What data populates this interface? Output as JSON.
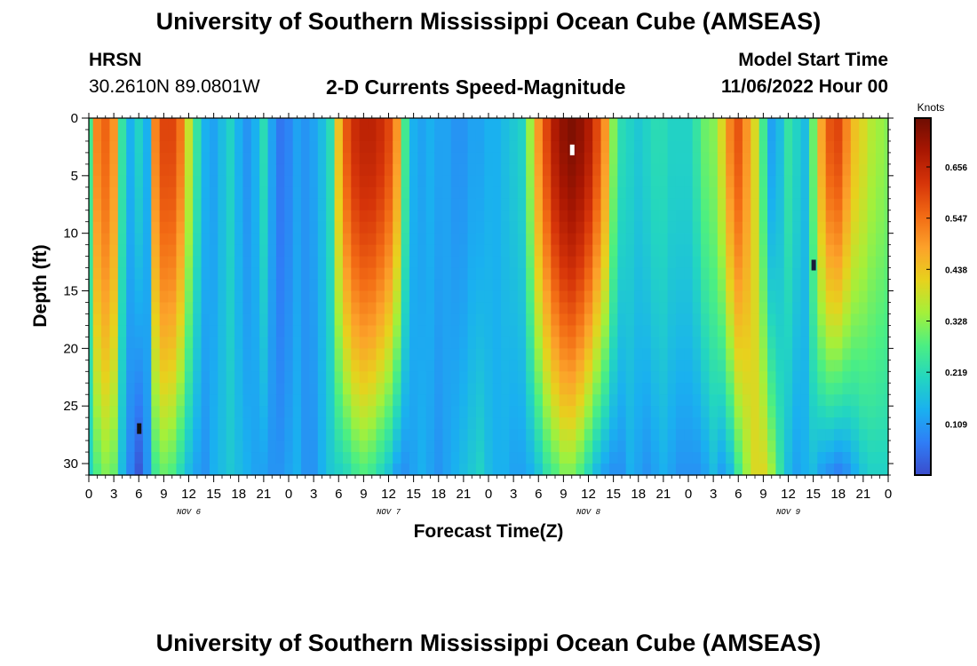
{
  "page": {
    "title": "University of Southern Mississippi Ocean Cube (AMSEAS)",
    "footer_title": "University of Southern Mississippi Ocean Cube (AMSEAS)",
    "station": "HRSN",
    "coords": "30.2610N  89.0801W",
    "subtitle": "2-D Currents Speed-Magnitude",
    "model_start_label": "Model Start Time",
    "model_start_value": "11/06/2022 Hour 00"
  },
  "chart_data": {
    "type": "heatmap",
    "title": "2-D Currents Speed-Magnitude",
    "xlabel": "Forecast Time(Z)",
    "ylabel": "Depth (ft)",
    "x_tick_labels": [
      "0",
      "3",
      "6",
      "9",
      "12",
      "15",
      "18",
      "21",
      "0",
      "3",
      "6",
      "9",
      "12",
      "15",
      "18",
      "21",
      "0",
      "3",
      "6",
      "9",
      "12",
      "15",
      "18",
      "21",
      "0",
      "3",
      "6",
      "9",
      "12",
      "15",
      "18",
      "21",
      "0"
    ],
    "x_hours": [
      0,
      3,
      6,
      9,
      12,
      15,
      18,
      21,
      24,
      27,
      30,
      33,
      36,
      39,
      42,
      45,
      48,
      51,
      54,
      57,
      60,
      63,
      66,
      69,
      72,
      75,
      78,
      81,
      84,
      87,
      90,
      93,
      96
    ],
    "xlim": [
      0,
      96
    ],
    "day_labels": [
      {
        "text": "NOV 6",
        "hour": 12
      },
      {
        "text": "NOV 7",
        "hour": 36
      },
      {
        "text": "NOV 8",
        "hour": 60
      },
      {
        "text": "NOV 9",
        "hour": 84
      }
    ],
    "y_ticks": [
      0,
      5,
      10,
      15,
      20,
      25,
      30
    ],
    "y_tick_labels": [
      "0",
      "5",
      "10",
      "15",
      "20",
      "25",
      "30"
    ],
    "ylim": [
      0,
      31
    ],
    "y_inverted": true,
    "colorbar": {
      "unit": "Knots",
      "min": 0.0,
      "max": 0.76,
      "ticks": [
        0.109,
        0.219,
        0.328,
        0.438,
        0.547,
        0.656
      ],
      "tick_labels": [
        "0.109",
        "0.219",
        "0.328",
        "0.438",
        "0.547",
        "0.656"
      ],
      "colors": [
        "#3b4ccc",
        "#2f7df6",
        "#1ab0f0",
        "#23d6c0",
        "#4cef82",
        "#a4f03a",
        "#e7d21d",
        "#fca22a",
        "#f26a14",
        "#d63409",
        "#a81602",
        "#6e0d02"
      ]
    },
    "speed_profiles": [
      {
        "hour": 0,
        "surface": 0.26,
        "bottom": 0.2
      },
      {
        "hour": 1,
        "surface": 0.52,
        "bottom": 0.28
      },
      {
        "hour": 2,
        "surface": 0.56,
        "bottom": 0.32
      },
      {
        "hour": 3,
        "surface": 0.5,
        "bottom": 0.3
      },
      {
        "hour": 4,
        "surface": 0.24,
        "bottom": 0.16
      },
      {
        "hour": 5,
        "surface": 0.14,
        "bottom": 0.08
      },
      {
        "hour": 6,
        "surface": 0.2,
        "bottom": 0.02
      },
      {
        "hour": 7,
        "surface": 0.14,
        "bottom": 0.1
      },
      {
        "hour": 8,
        "surface": 0.52,
        "bottom": 0.26
      },
      {
        "hour": 9,
        "surface": 0.6,
        "bottom": 0.3
      },
      {
        "hour": 10,
        "surface": 0.6,
        "bottom": 0.28
      },
      {
        "hour": 11,
        "surface": 0.54,
        "bottom": 0.22
      },
      {
        "hour": 12,
        "surface": 0.38,
        "bottom": 0.16
      },
      {
        "hour": 13,
        "surface": 0.24,
        "bottom": 0.12
      },
      {
        "hour": 14,
        "surface": 0.14,
        "bottom": 0.1
      },
      {
        "hour": 15,
        "surface": 0.12,
        "bottom": 0.14
      },
      {
        "hour": 16,
        "surface": 0.16,
        "bottom": 0.16
      },
      {
        "hour": 17,
        "surface": 0.2,
        "bottom": 0.18
      },
      {
        "hour": 18,
        "surface": 0.14,
        "bottom": 0.16
      },
      {
        "hour": 19,
        "surface": 0.1,
        "bottom": 0.14
      },
      {
        "hour": 20,
        "surface": 0.14,
        "bottom": 0.12
      },
      {
        "hour": 21,
        "surface": 0.22,
        "bottom": 0.12
      },
      {
        "hour": 22,
        "surface": 0.12,
        "bottom": 0.1
      },
      {
        "hour": 23,
        "surface": 0.06,
        "bottom": 0.1
      },
      {
        "hour": 24,
        "surface": 0.08,
        "bottom": 0.12
      },
      {
        "hour": 25,
        "surface": 0.12,
        "bottom": 0.14
      },
      {
        "hour": 26,
        "surface": 0.1,
        "bottom": 0.1
      },
      {
        "hour": 27,
        "surface": 0.12,
        "bottom": 0.1
      },
      {
        "hour": 28,
        "surface": 0.16,
        "bottom": 0.14
      },
      {
        "hour": 29,
        "surface": 0.22,
        "bottom": 0.18
      },
      {
        "hour": 30,
        "surface": 0.44,
        "bottom": 0.2
      },
      {
        "hour": 31,
        "surface": 0.58,
        "bottom": 0.22
      },
      {
        "hour": 32,
        "surface": 0.64,
        "bottom": 0.26
      },
      {
        "hour": 33,
        "surface": 0.66,
        "bottom": 0.28
      },
      {
        "hour": 34,
        "surface": 0.66,
        "bottom": 0.26
      },
      {
        "hour": 35,
        "surface": 0.64,
        "bottom": 0.22
      },
      {
        "hour": 36,
        "surface": 0.6,
        "bottom": 0.18
      },
      {
        "hour": 37,
        "surface": 0.5,
        "bottom": 0.12
      },
      {
        "hour": 38,
        "surface": 0.26,
        "bottom": 0.1
      },
      {
        "hour": 39,
        "surface": 0.14,
        "bottom": 0.12
      },
      {
        "hour": 40,
        "surface": 0.12,
        "bottom": 0.14
      },
      {
        "hour": 41,
        "surface": 0.14,
        "bottom": 0.12
      },
      {
        "hour": 42,
        "surface": 0.12,
        "bottom": 0.1
      },
      {
        "hour": 43,
        "surface": 0.12,
        "bottom": 0.12
      },
      {
        "hour": 44,
        "surface": 0.1,
        "bottom": 0.14
      },
      {
        "hour": 45,
        "surface": 0.1,
        "bottom": 0.16
      },
      {
        "hour": 46,
        "surface": 0.12,
        "bottom": 0.18
      },
      {
        "hour": 47,
        "surface": 0.12,
        "bottom": 0.2
      },
      {
        "hour": 48,
        "surface": 0.14,
        "bottom": 0.16
      },
      {
        "hour": 49,
        "surface": 0.14,
        "bottom": 0.14
      },
      {
        "hour": 50,
        "surface": 0.16,
        "bottom": 0.14
      },
      {
        "hour": 51,
        "surface": 0.18,
        "bottom": 0.12
      },
      {
        "hour": 52,
        "surface": 0.2,
        "bottom": 0.12
      },
      {
        "hour": 53,
        "surface": 0.34,
        "bottom": 0.14
      },
      {
        "hour": 54,
        "surface": 0.5,
        "bottom": 0.18
      },
      {
        "hour": 55,
        "surface": 0.6,
        "bottom": 0.24
      },
      {
        "hour": 56,
        "surface": 0.68,
        "bottom": 0.28
      },
      {
        "hour": 57,
        "surface": 0.72,
        "bottom": 0.32
      },
      {
        "hour": 58,
        "surface": 0.74,
        "bottom": 0.32
      },
      {
        "hour": 59,
        "surface": 0.72,
        "bottom": 0.28
      },
      {
        "hour": 60,
        "surface": 0.68,
        "bottom": 0.22
      },
      {
        "hour": 61,
        "surface": 0.6,
        "bottom": 0.16
      },
      {
        "hour": 62,
        "surface": 0.5,
        "bottom": 0.12
      },
      {
        "hour": 63,
        "surface": 0.32,
        "bottom": 0.1
      },
      {
        "hour": 64,
        "surface": 0.22,
        "bottom": 0.1
      },
      {
        "hour": 65,
        "surface": 0.2,
        "bottom": 0.14
      },
      {
        "hour": 66,
        "surface": 0.18,
        "bottom": 0.12
      },
      {
        "hour": 67,
        "surface": 0.2,
        "bottom": 0.1
      },
      {
        "hour": 68,
        "surface": 0.22,
        "bottom": 0.12
      },
      {
        "hour": 69,
        "surface": 0.22,
        "bottom": 0.14
      },
      {
        "hour": 70,
        "surface": 0.2,
        "bottom": 0.12
      },
      {
        "hour": 71,
        "surface": 0.2,
        "bottom": 0.1
      },
      {
        "hour": 72,
        "surface": 0.2,
        "bottom": 0.1
      },
      {
        "hour": 73,
        "surface": 0.24,
        "bottom": 0.1
      },
      {
        "hour": 74,
        "surface": 0.3,
        "bottom": 0.12
      },
      {
        "hour": 75,
        "surface": 0.32,
        "bottom": 0.16
      },
      {
        "hour": 76,
        "surface": 0.4,
        "bottom": 0.12
      },
      {
        "hour": 77,
        "surface": 0.52,
        "bottom": 0.16
      },
      {
        "hour": 78,
        "surface": 0.58,
        "bottom": 0.26
      },
      {
        "hour": 79,
        "surface": 0.5,
        "bottom": 0.34
      },
      {
        "hour": 80,
        "surface": 0.4,
        "bottom": 0.4
      },
      {
        "hour": 81,
        "surface": 0.26,
        "bottom": 0.4
      },
      {
        "hour": 82,
        "surface": 0.12,
        "bottom": 0.34
      },
      {
        "hour": 83,
        "surface": 0.16,
        "bottom": 0.24
      },
      {
        "hour": 84,
        "surface": 0.24,
        "bottom": 0.16
      },
      {
        "hour": 85,
        "surface": 0.2,
        "bottom": 0.12
      },
      {
        "hour": 86,
        "surface": 0.16,
        "bottom": 0.14
      },
      {
        "hour": 87,
        "surface": 0.3,
        "bottom": 0.16
      },
      {
        "hour": 88,
        "surface": 0.48,
        "bottom": 0.12
      },
      {
        "hour": 89,
        "surface": 0.58,
        "bottom": 0.1
      },
      {
        "hour": 90,
        "surface": 0.6,
        "bottom": 0.08
      },
      {
        "hour": 91,
        "surface": 0.52,
        "bottom": 0.1
      },
      {
        "hour": 92,
        "surface": 0.44,
        "bottom": 0.14
      },
      {
        "hour": 93,
        "surface": 0.4,
        "bottom": 0.18
      },
      {
        "hour": 94,
        "surface": 0.36,
        "bottom": 0.2
      },
      {
        "hour": 95,
        "surface": 0.34,
        "bottom": 0.2
      },
      {
        "hour": 96,
        "surface": 0.32,
        "bottom": 0.2
      }
    ],
    "colors": {
      "axis": "#000000",
      "background": "#ffffff"
    }
  }
}
